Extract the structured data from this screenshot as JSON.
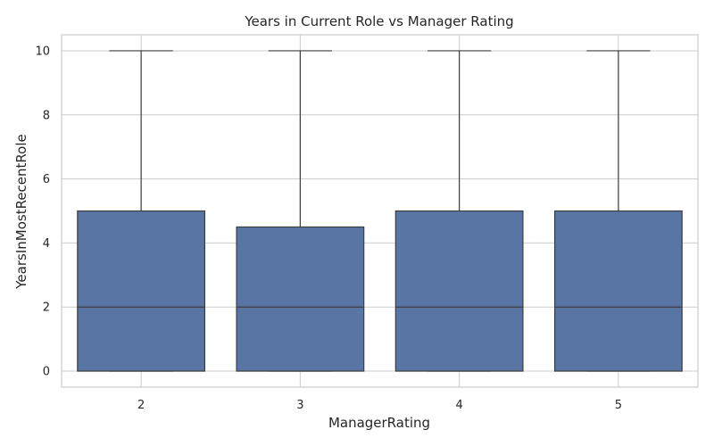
{
  "chart_data": {
    "type": "box",
    "title": "Years in Current Role vs Manager Rating",
    "xlabel": "ManagerRating",
    "ylabel": "YearsInMostRecentRole",
    "categories": [
      "2",
      "3",
      "4",
      "5"
    ],
    "boxes": [
      {
        "category": "2",
        "min": 0,
        "q1": 0,
        "median": 2,
        "q3": 5,
        "max": 10
      },
      {
        "category": "3",
        "min": 0,
        "q1": 0,
        "median": 2,
        "q3": 4.5,
        "max": 10
      },
      {
        "category": "4",
        "min": 0,
        "q1": 0,
        "median": 2,
        "q3": 5,
        "max": 10
      },
      {
        "category": "5",
        "min": 0,
        "q1": 0,
        "median": 2,
        "q3": 5,
        "max": 10
      }
    ],
    "yticks": [
      0,
      2,
      4,
      6,
      8,
      10
    ],
    "ylim": [
      -0.5,
      10.5
    ],
    "grid": true,
    "colors": {
      "box_fill": "#5875a4",
      "line": "#3d3d3d",
      "grid": "#cccccc",
      "frame": "#cccccc"
    }
  }
}
